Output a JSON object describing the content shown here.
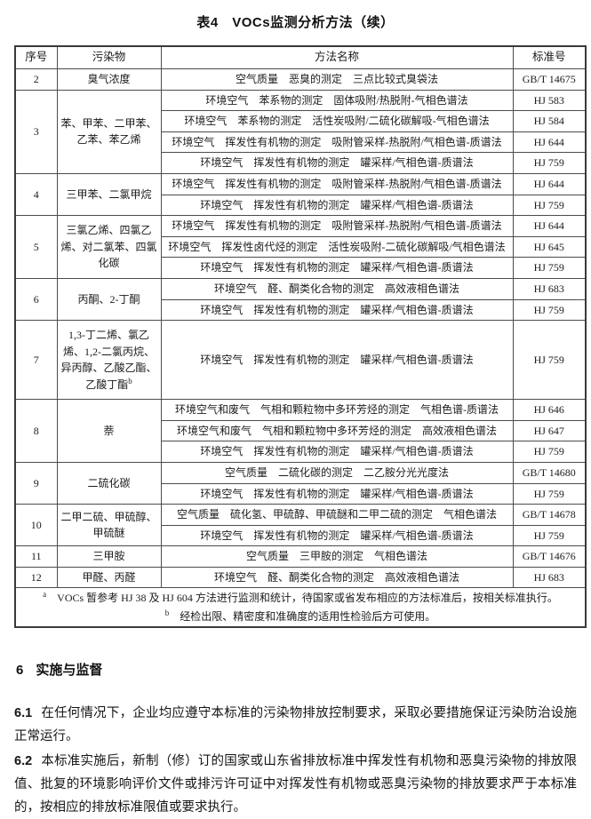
{
  "title": "表4　VOCs监测分析方法（续）",
  "table": {
    "headers": [
      "序号",
      "污染物",
      "方法名称",
      "标准号"
    ],
    "rows": [
      {
        "no": "2",
        "pollutant": "臭气浓度",
        "methods": [
          {
            "name": "空气质量　恶臭的测定　三点比较式臭袋法",
            "std": "GB/T 14675"
          }
        ]
      },
      {
        "no": "3",
        "pollutant": "苯、甲苯、二甲苯、乙苯、苯乙烯",
        "methods": [
          {
            "name": "环境空气　苯系物的测定　固体吸附/热脱附-气相色谱法",
            "std": "HJ 583"
          },
          {
            "name": "环境空气　苯系物的测定　活性炭吸附/二硫化碳解吸-气相色谱法",
            "std": "HJ 584"
          },
          {
            "name": "环境空气　挥发性有机物的测定　吸附管采样-热脱附/气相色谱-质谱法",
            "std": "HJ 644"
          },
          {
            "name": "环境空气　挥发性有机物的测定　罐采样/气相色谱-质谱法",
            "std": "HJ 759"
          }
        ]
      },
      {
        "no": "4",
        "pollutant": "三甲苯、二氯甲烷",
        "methods": [
          {
            "name": "环境空气　挥发性有机物的测定　吸附管采样-热脱附/气相色谱-质谱法",
            "std": "HJ 644"
          },
          {
            "name": "环境空气　挥发性有机物的测定　罐采样/气相色谱-质谱法",
            "std": "HJ 759"
          }
        ]
      },
      {
        "no": "5",
        "pollutant": "三氯乙烯、四氯乙烯、对二氯苯、四氯化碳",
        "methods": [
          {
            "name": "环境空气　挥发性有机物的测定　吸附管采样-热脱附/气相色谱-质谱法",
            "std": "HJ 644"
          },
          {
            "name": "环境空气　挥发性卤代烃的测定　活性炭吸附-二硫化碳解吸/气相色谱法",
            "std": "HJ 645"
          },
          {
            "name": "环境空气　挥发性有机物的测定　罐采样/气相色谱-质谱法",
            "std": "HJ 759"
          }
        ]
      },
      {
        "no": "6",
        "pollutant": "丙酮、2-丁酮",
        "methods": [
          {
            "name": "环境空气　醛、酮类化合物的测定　高效液相色谱法",
            "std": "HJ 683"
          },
          {
            "name": "环境空气　挥发性有机物的测定　罐采样/气相色谱-质谱法",
            "std": "HJ 759"
          }
        ]
      },
      {
        "no": "7",
        "pollutant": "1,3-丁二烯、氯乙烯、1,2-二氯丙烷、异丙醇、乙酸乙酯、乙酸丁酯",
        "pollutant_sup": "b",
        "min_height": 84,
        "methods": [
          {
            "name": "环境空气　挥发性有机物的测定　罐采样/气相色谱-质谱法",
            "std": "HJ 759"
          }
        ]
      },
      {
        "no": "8",
        "pollutant": "萘",
        "methods": [
          {
            "name": "环境空气和废气　气相和颗粒物中多环芳烃的测定　气相色谱-质谱法",
            "std": "HJ 646"
          },
          {
            "name": "环境空气和废气　气相和颗粒物中多环芳烃的测定　高效液相色谱法",
            "std": "HJ 647"
          },
          {
            "name": "环境空气　挥发性有机物的测定　罐采样/气相色谱-质谱法",
            "std": "HJ 759"
          }
        ]
      },
      {
        "no": "9",
        "pollutant": "二硫化碳",
        "methods": [
          {
            "name": "空气质量　二硫化碳的测定　二乙胺分光光度法",
            "std": "GB/T 14680"
          },
          {
            "name": "环境空气　挥发性有机物的测定　罐采样/气相色谱-质谱法",
            "std": "HJ 759"
          }
        ]
      },
      {
        "no": "10",
        "pollutant": "二甲二硫、甲硫醇、甲硫醚",
        "methods": [
          {
            "name": "空气质量　硫化氢、甲硫醇、甲硫醚和二甲二硫的测定　气相色谱法",
            "std": "GB/T 14678"
          },
          {
            "name": "环境空气　挥发性有机物的测定　罐采样/气相色谱-质谱法",
            "std": "HJ 759"
          }
        ]
      },
      {
        "no": "11",
        "pollutant": "三甲胺",
        "methods": [
          {
            "name": "空气质量　三甲胺的测定　气相色谱法",
            "std": "GB/T 14676"
          }
        ]
      },
      {
        "no": "12",
        "pollutant": "甲醛、丙醛",
        "methods": [
          {
            "name": "环境空气　醛、酮类化合物的测定　高效液相色谱法",
            "std": "HJ 683"
          }
        ]
      }
    ],
    "footnotes": [
      {
        "marker": "a",
        "text": "VOCs 暂参考 HJ 38 及 HJ 604 方法进行监测和统计，待国家或省发布相应的方法标准后，按相关标准执行。"
      },
      {
        "marker": "b",
        "text": "经检出限、精密度和准确度的适用性检验后方可使用。"
      }
    ]
  },
  "section": {
    "heading_no": "6",
    "heading_title": "实施与监督",
    "clauses": [
      {
        "no": "6.1",
        "text": "在任何情况下，企业均应遵守本标准的污染物排放控制要求，采取必要措施保证污染防治设施正常运行。"
      },
      {
        "no": "6.2",
        "text": "本标准实施后，新制（修）订的国家或山东省排放标准中挥发性有机物和恶臭污染物的排放限值、批复的环境影响评价文件或排污许可证中对挥发性有机物或恶臭污染物的排放要求严于本标准的，按相应的排放标准限值或要求执行。"
      }
    ]
  }
}
